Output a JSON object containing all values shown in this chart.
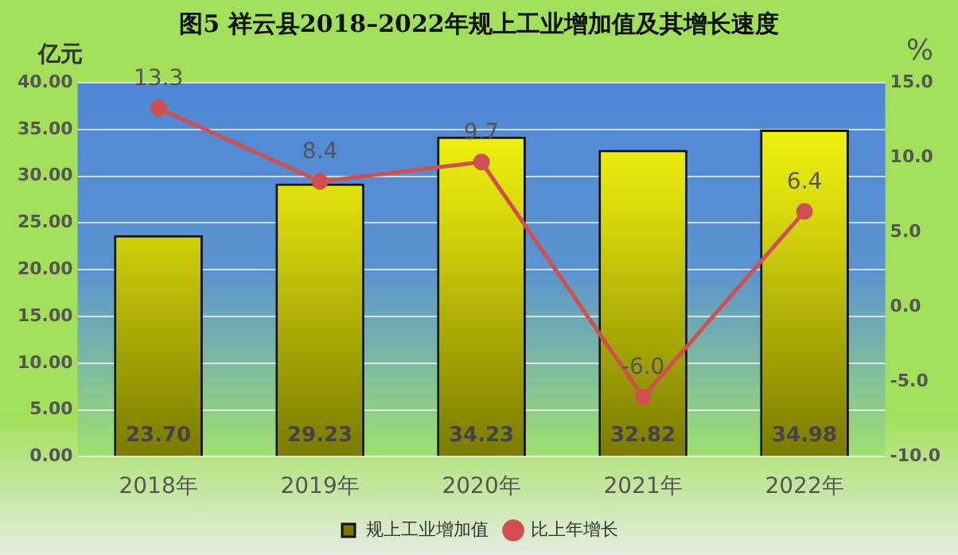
{
  "chart_data": {
    "type": "bar",
    "title": "图5  祥云县2018–2022年规上工业增加值及其增长速度",
    "ylabel": "亿元",
    "y2label": "%",
    "categories": [
      "2018年",
      "2019年",
      "2020年",
      "2021年",
      "2022年"
    ],
    "series": [
      {
        "name": "规上工业增加值",
        "color": "#d8d80c",
        "values": [
          23.7,
          29.23,
          34.23,
          32.82,
          34.98
        ],
        "value_labels": [
          "23.70",
          "29.23",
          "34.23",
          "32.82",
          "34.98"
        ]
      },
      {
        "name": "比上年增长",
        "type": "line",
        "axis": "y2",
        "color": "#d0504f",
        "values": [
          13.3,
          8.4,
          9.7,
          -6.0,
          6.4
        ],
        "value_labels": [
          "13.3",
          "8.4",
          "9.7",
          "-6.0",
          "6.4"
        ]
      }
    ],
    "ylim": [
      0,
      40
    ],
    "yticks": [
      {
        "value": 0,
        "label": "0.00"
      },
      {
        "value": 5,
        "label": "5.00"
      },
      {
        "value": 10,
        "label": "10.00"
      },
      {
        "value": 15,
        "label": "15.00"
      },
      {
        "value": 20,
        "label": "20.00"
      },
      {
        "value": 25,
        "label": "25.00"
      },
      {
        "value": 30,
        "label": "30.00"
      },
      {
        "value": 35,
        "label": "35.00"
      },
      {
        "value": 40,
        "label": "40.00"
      }
    ],
    "y2lim": [
      -10,
      15
    ],
    "y2ticks": [
      {
        "value": -10,
        "label": "-10.0"
      },
      {
        "value": -5,
        "label": "-5.0"
      },
      {
        "value": 0,
        "label": "0.0"
      },
      {
        "value": 5,
        "label": "5.0"
      },
      {
        "value": 10,
        "label": "10.0"
      },
      {
        "value": 15,
        "label": "15.0"
      }
    ],
    "grid": "y",
    "legend": "bottom",
    "marker": "circle",
    "line_style": "solid"
  }
}
